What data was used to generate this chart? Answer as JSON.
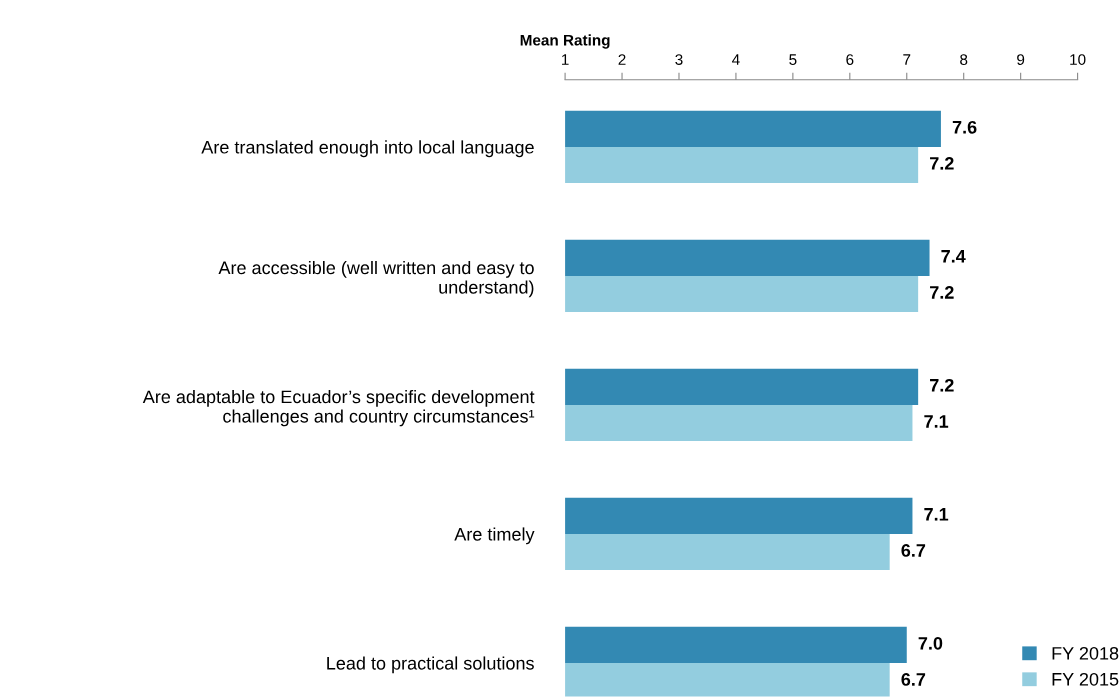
{
  "chart_data": {
    "type": "bar",
    "orientation": "horizontal",
    "xlabel": "Mean Rating",
    "categories": [
      "Are translated enough into local language",
      "Are accessible (well written and easy to understand)",
      "Are adaptable to Ecuador’s specific development challenges and country circumstances¹",
      "Are timely",
      "Lead to practical solutions"
    ],
    "series": [
      {
        "name": "FY 2018",
        "color": "#3389b3",
        "values": [
          7.6,
          7.4,
          7.2,
          7.1,
          7.0
        ],
        "value_labels": [
          "7.6",
          "7.4",
          "7.2",
          "7.1",
          "7.0"
        ]
      },
      {
        "name": "FY 2015",
        "color": "#93cddf",
        "values": [
          7.2,
          7.2,
          7.1,
          6.7,
          6.7
        ],
        "value_labels": [
          "7.2",
          "7.2",
          "7.1",
          "6.7",
          "6.7"
        ]
      }
    ],
    "xlim": [
      1,
      10
    ],
    "xticks": [
      1,
      2,
      3,
      4,
      5,
      6,
      7,
      8,
      9,
      10
    ],
    "legend": "bottom right",
    "grid": false
  }
}
